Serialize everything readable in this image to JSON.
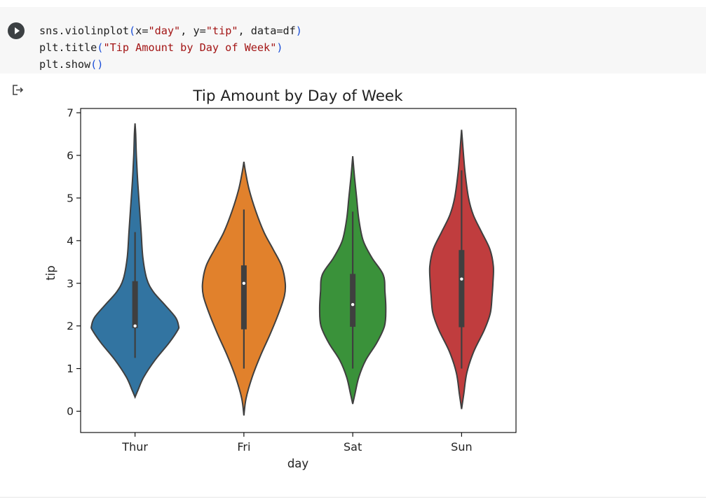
{
  "code": {
    "line1": {
      "a": "sns.violinplot",
      "b": "(",
      "c": "x=",
      "d": "\"day\"",
      "e": ", y=",
      "f": "\"tip\"",
      "g": ", data=df",
      "h": ")"
    },
    "line2": {
      "a": "plt.title",
      "b": "(",
      "c": "\"Tip Amount by Day of Week\"",
      "d": ")"
    },
    "line3": {
      "a": "plt.show",
      "b": "()"
    }
  },
  "icons": {
    "run": "play-icon",
    "output": "output-arrow-icon"
  },
  "chart_data": {
    "type": "violin",
    "title": "Tip Amount by Day of Week",
    "xlabel": "day",
    "ylabel": "tip",
    "ylim": [
      -0.5,
      7.1
    ],
    "yticks": [
      0,
      1,
      2,
      3,
      4,
      5,
      6,
      7
    ],
    "categories": [
      "Thur",
      "Fri",
      "Sat",
      "Sun"
    ],
    "colors": [
      "#3274a1",
      "#e1812c",
      "#3a923a",
      "#c03d3e"
    ],
    "series": [
      {
        "category": "Thur",
        "min_extent": 0.33,
        "max_extent": 6.75,
        "median": 2.0,
        "q1": 1.95,
        "q3": 3.05,
        "whisker_low": 1.25,
        "whisker_high": 4.2,
        "shape": [
          [
            0.33,
            0
          ],
          [
            0.5,
            0.07
          ],
          [
            0.8,
            0.2
          ],
          [
            1.2,
            0.46
          ],
          [
            1.6,
            0.78
          ],
          [
            1.9,
            0.98
          ],
          [
            2.0,
            1.0
          ],
          [
            2.2,
            0.93
          ],
          [
            2.5,
            0.68
          ],
          [
            2.8,
            0.42
          ],
          [
            3.1,
            0.27
          ],
          [
            3.6,
            0.18
          ],
          [
            4.2,
            0.14
          ],
          [
            4.8,
            0.1
          ],
          [
            5.4,
            0.06
          ],
          [
            6.0,
            0.03
          ],
          [
            6.5,
            0.015
          ],
          [
            6.75,
            0
          ]
        ]
      },
      {
        "category": "Fri",
        "min_extent": -0.1,
        "max_extent": 5.85,
        "median": 3.0,
        "q1": 1.92,
        "q3": 3.42,
        "whisker_low": 1.0,
        "whisker_high": 4.73,
        "shape": [
          [
            -0.1,
            0
          ],
          [
            0.3,
            0.05
          ],
          [
            0.8,
            0.19
          ],
          [
            1.3,
            0.38
          ],
          [
            1.8,
            0.6
          ],
          [
            2.3,
            0.8
          ],
          [
            2.7,
            0.93
          ],
          [
            3.0,
            0.95
          ],
          [
            3.4,
            0.87
          ],
          [
            3.8,
            0.67
          ],
          [
            4.2,
            0.46
          ],
          [
            4.7,
            0.27
          ],
          [
            5.2,
            0.12
          ],
          [
            5.6,
            0.04
          ],
          [
            5.85,
            0
          ]
        ]
      },
      {
        "category": "Sat",
        "min_extent": 0.17,
        "max_extent": 5.98,
        "median": 2.5,
        "q1": 1.98,
        "q3": 3.22,
        "whisker_low": 1.0,
        "whisker_high": 4.68,
        "shape": [
          [
            0.17,
            0
          ],
          [
            0.4,
            0.05
          ],
          [
            0.8,
            0.14
          ],
          [
            1.2,
            0.3
          ],
          [
            1.6,
            0.55
          ],
          [
            2.0,
            0.73
          ],
          [
            2.4,
            0.76
          ],
          [
            2.8,
            0.74
          ],
          [
            3.2,
            0.7
          ],
          [
            3.6,
            0.44
          ],
          [
            4.0,
            0.24
          ],
          [
            4.5,
            0.14
          ],
          [
            5.0,
            0.09
          ],
          [
            5.5,
            0.04
          ],
          [
            5.98,
            0
          ]
        ]
      },
      {
        "category": "Sun",
        "min_extent": 0.05,
        "max_extent": 6.6,
        "median": 3.1,
        "q1": 1.97,
        "q3": 3.78,
        "whisker_low": 1.0,
        "whisker_high": 5.65,
        "shape": [
          [
            0.05,
            0
          ],
          [
            0.4,
            0.05
          ],
          [
            0.9,
            0.12
          ],
          [
            1.4,
            0.28
          ],
          [
            1.9,
            0.52
          ],
          [
            2.3,
            0.66
          ],
          [
            2.7,
            0.7
          ],
          [
            3.0,
            0.72
          ],
          [
            3.4,
            0.73
          ],
          [
            3.8,
            0.65
          ],
          [
            4.2,
            0.46
          ],
          [
            4.6,
            0.27
          ],
          [
            5.0,
            0.16
          ],
          [
            5.6,
            0.08
          ],
          [
            6.2,
            0.03
          ],
          [
            6.6,
            0
          ]
        ]
      }
    ]
  }
}
